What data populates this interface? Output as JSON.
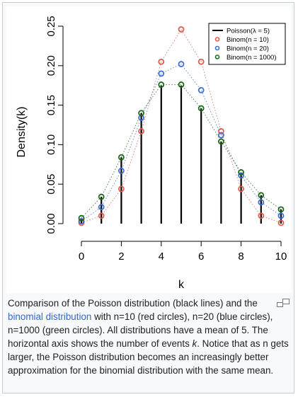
{
  "chart_data": {
    "type": "scatter",
    "xlabel": "k",
    "ylabel": "Density(k)",
    "xlim": [
      0,
      10
    ],
    "ylim": [
      0,
      0.25
    ],
    "x_ticks": [
      "0",
      "2",
      "4",
      "6",
      "8",
      "10"
    ],
    "y_ticks": [
      "0.00",
      "0.05",
      "0.10",
      "0.15",
      "0.20",
      "0.25"
    ],
    "grid": false,
    "legend_position": "top-right",
    "x": [
      0,
      1,
      2,
      3,
      4,
      5,
      6,
      7,
      8,
      9,
      10
    ],
    "series": [
      {
        "name": "Poisson(λ = 5)",
        "style": "vertical-lines",
        "color": "#000000",
        "values": [
          0.007,
          0.034,
          0.084,
          0.14,
          0.175,
          0.175,
          0.146,
          0.104,
          0.065,
          0.036,
          0.018
        ]
      },
      {
        "name": "Binom(n = 10)",
        "style": "circles",
        "color": "#df5e4f",
        "values": [
          0.001,
          0.01,
          0.044,
          0.117,
          0.205,
          0.246,
          0.205,
          0.117,
          0.044,
          0.01,
          0.001
        ]
      },
      {
        "name": "Binom(n = 20)",
        "style": "circles",
        "color": "#3f6fd8",
        "values": [
          0.003,
          0.021,
          0.067,
          0.134,
          0.19,
          0.202,
          0.169,
          0.112,
          0.061,
          0.027,
          0.01
        ]
      },
      {
        "name": "Binom(n = 1000)",
        "style": "circles",
        "color": "#1b6a1b",
        "values": [
          0.007,
          0.034,
          0.084,
          0.14,
          0.176,
          0.176,
          0.146,
          0.104,
          0.065,
          0.036,
          0.018
        ]
      }
    ]
  },
  "caption": {
    "text_before": "Comparison of the Poisson distribution (black lines) and the ",
    "link_text": "binomial distribution",
    "text_after": " with n=10 (red circles), n=20 (blue circles), n=1000 (green circles). All distributions have a mean of 5. The horizontal axis shows the number of events ",
    "k_text": "k",
    "text_end": ". Notice that as n gets larger, the Poisson distribution becomes an increasingly better approximation for the binomial distribution with the same mean."
  }
}
